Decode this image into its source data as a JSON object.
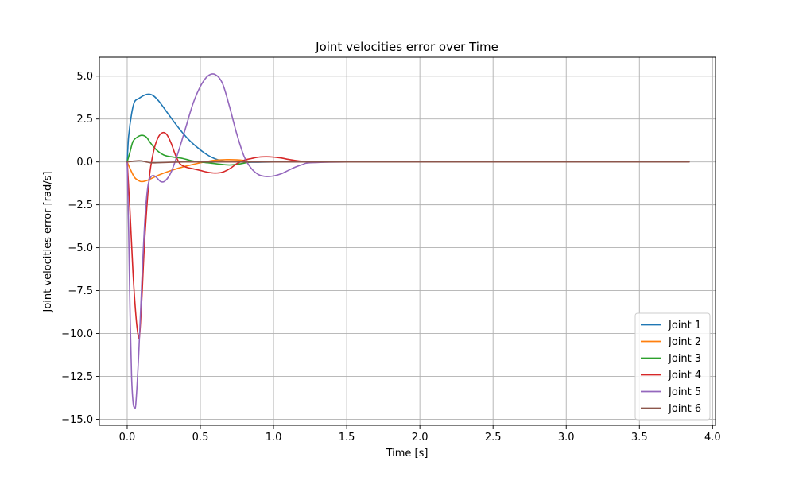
{
  "chart_data": {
    "type": "line",
    "title": "Joint velocities error over Time",
    "xlabel": "Time [s]",
    "ylabel": "Joint velocities error [rad/s]",
    "xlim": [
      -0.19,
      4.02
    ],
    "ylim": [
      -15.35,
      6.1
    ],
    "xticks": [
      0.0,
      0.5,
      1.0,
      1.5,
      2.0,
      2.5,
      3.0,
      3.5,
      4.0
    ],
    "xtick_labels": [
      "0.0",
      "0.5",
      "1.0",
      "1.5",
      "2.0",
      "2.5",
      "3.0",
      "3.5",
      "4.0"
    ],
    "yticks": [
      5.0,
      2.5,
      0.0,
      -2.5,
      -5.0,
      -7.5,
      -10.0,
      -12.5,
      -15.0
    ],
    "ytick_labels": [
      "5.0",
      "2.5",
      "0.0",
      "−2.5",
      "−5.0",
      "−7.5",
      "−10.0",
      "−12.5",
      "−15.0"
    ],
    "grid": true,
    "legend_position": "bottom-right",
    "series": [
      {
        "name": "Joint 1",
        "color": "#1f77b4",
        "x": [
          0,
          0.01,
          0.03,
          0.05,
          0.08,
          0.12,
          0.15,
          0.18,
          0.22,
          0.28,
          0.35,
          0.42,
          0.5,
          0.57,
          0.63,
          0.68,
          0.75,
          0.85,
          1.0,
          1.2,
          1.5,
          2.0,
          3.0,
          3.84
        ],
        "y": [
          0,
          1.5,
          2.8,
          3.5,
          3.7,
          3.9,
          3.95,
          3.85,
          3.5,
          2.8,
          2.0,
          1.3,
          0.7,
          0.3,
          0.1,
          0.03,
          0.0,
          -0.02,
          0.0,
          0.0,
          0.0,
          0.0,
          0.0,
          0.0
        ]
      },
      {
        "name": "Joint 2",
        "color": "#ff7f0e",
        "x": [
          0,
          0.02,
          0.05,
          0.08,
          0.1,
          0.13,
          0.17,
          0.22,
          0.3,
          0.4,
          0.5,
          0.6,
          0.68,
          0.75,
          0.8,
          0.85,
          0.9,
          1.0,
          1.5,
          2.0,
          3.0,
          3.84
        ],
        "y": [
          0,
          -0.4,
          -0.9,
          -1.1,
          -1.15,
          -1.1,
          -0.95,
          -0.75,
          -0.5,
          -0.25,
          -0.05,
          0.1,
          0.13,
          0.12,
          0.08,
          0.02,
          0.0,
          0.0,
          0.0,
          0.0,
          0.0,
          0.0
        ]
      },
      {
        "name": "Joint 3",
        "color": "#2ca02c",
        "x": [
          0,
          0.02,
          0.04,
          0.07,
          0.1,
          0.13,
          0.16,
          0.2,
          0.25,
          0.3,
          0.38,
          0.45,
          0.55,
          0.62,
          0.7,
          0.78,
          0.85,
          0.95,
          1.1,
          1.5,
          2.0,
          3.0,
          3.84
        ],
        "y": [
          0,
          0.6,
          1.2,
          1.45,
          1.55,
          1.45,
          1.1,
          0.7,
          0.4,
          0.3,
          0.2,
          0.05,
          -0.05,
          -0.12,
          -0.18,
          -0.1,
          0.0,
          0.01,
          0.0,
          0.0,
          0.0,
          0.0,
          0.0
        ]
      },
      {
        "name": "Joint 4",
        "color": "#d62728",
        "x": [
          0,
          0.02,
          0.04,
          0.06,
          0.075,
          0.085,
          0.1,
          0.12,
          0.15,
          0.18,
          0.21,
          0.24,
          0.27,
          0.3,
          0.33,
          0.36,
          0.4,
          0.45,
          0.5,
          0.55,
          0.6,
          0.65,
          0.7,
          0.75,
          0.8,
          0.85,
          0.9,
          0.95,
          1.0,
          1.05,
          1.1,
          1.15,
          1.2,
          1.25,
          1.5,
          2.0,
          3.0,
          3.84
        ],
        "y": [
          0,
          -3.0,
          -6.5,
          -9.0,
          -10.1,
          -10.1,
          -8.0,
          -4.5,
          -1.0,
          0.6,
          1.4,
          1.7,
          1.6,
          1.1,
          0.4,
          -0.1,
          -0.3,
          -0.4,
          -0.5,
          -0.6,
          -0.65,
          -0.6,
          -0.4,
          -0.1,
          0.1,
          0.2,
          0.28,
          0.3,
          0.28,
          0.23,
          0.15,
          0.08,
          0.03,
          0.0,
          0.0,
          0.0,
          0.0,
          0.0
        ]
      },
      {
        "name": "Joint 5",
        "color": "#9467bd",
        "x": [
          0,
          0.01,
          0.02,
          0.03,
          0.04,
          0.05,
          0.06,
          0.08,
          0.1,
          0.12,
          0.14,
          0.16,
          0.18,
          0.2,
          0.23,
          0.26,
          0.3,
          0.35,
          0.4,
          0.45,
          0.5,
          0.55,
          0.6,
          0.65,
          0.7,
          0.75,
          0.8,
          0.85,
          0.9,
          0.95,
          1.0,
          1.05,
          1.1,
          1.15,
          1.2,
          1.25,
          1.5,
          2.0,
          3.0,
          3.84
        ],
        "y": [
          0,
          -4.0,
          -9.0,
          -12.5,
          -14.0,
          -14.3,
          -14.0,
          -11.0,
          -7.0,
          -3.5,
          -1.5,
          -0.9,
          -0.8,
          -0.9,
          -1.15,
          -1.1,
          -0.6,
          0.6,
          2.0,
          3.4,
          4.4,
          5.0,
          5.1,
          4.6,
          3.2,
          1.6,
          0.3,
          -0.4,
          -0.75,
          -0.85,
          -0.82,
          -0.7,
          -0.5,
          -0.3,
          -0.15,
          -0.05,
          0.0,
          0.0,
          0.0,
          0.0
        ]
      },
      {
        "name": "Joint 6",
        "color": "#8c564b",
        "x": [
          0,
          0.02,
          0.05,
          0.08,
          0.1,
          0.13,
          0.16,
          0.2,
          0.3,
          0.4,
          0.5,
          1.0,
          2.0,
          3.0,
          3.84
        ],
        "y": [
          0,
          0.02,
          0.05,
          0.07,
          0.06,
          0.0,
          -0.05,
          -0.05,
          -0.02,
          0.0,
          0.0,
          0.0,
          0.0,
          0.0,
          0.0
        ]
      }
    ]
  }
}
